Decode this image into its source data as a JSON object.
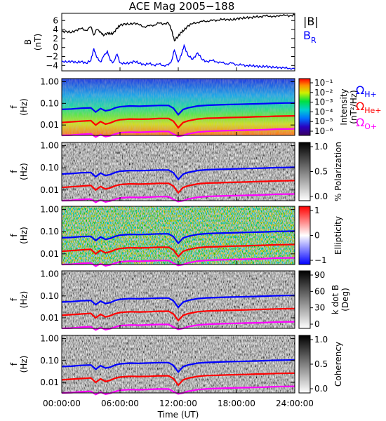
{
  "chart_data": [
    {
      "type": "line",
      "title": "ACE Mag 2005−188",
      "ylabel": "B",
      "yunit": "(nT)",
      "yticks": [
        "6",
        "4",
        "2",
        "0",
        "−2",
        "−4"
      ],
      "ylim": [
        -5.2,
        7.6
      ],
      "x_hours": [
        0,
        0.5,
        1,
        1.5,
        2,
        2.5,
        3,
        3.3,
        3.6,
        4,
        4.3,
        4.7,
        5,
        5.3,
        5.7,
        6,
        6.5,
        7,
        7.5,
        8,
        8.5,
        9,
        9.5,
        10,
        10.5,
        11,
        11.3,
        11.6,
        12,
        12.3,
        12.6,
        13,
        13.5,
        14,
        14.5,
        15,
        15.5,
        16,
        16.5,
        17,
        17.5,
        18,
        18.5,
        19,
        19.5,
        20,
        20.5,
        21,
        21.5,
        22,
        22.5,
        23,
        23.5,
        24
      ],
      "series": [
        {
          "name": "|B|",
          "color": "#000000",
          "values": [
            3.5,
            3.6,
            3.3,
            3.9,
            4.2,
            3.8,
            4.6,
            2.8,
            4.0,
            3.5,
            2.6,
            3.3,
            3.0,
            3.2,
            4.3,
            4.9,
            5.3,
            5.1,
            5.5,
            5.0,
            4.6,
            4.8,
            5.0,
            5.4,
            5.3,
            5.4,
            4.0,
            1.5,
            2.5,
            3.4,
            3.8,
            4.9,
            5.3,
            5.6,
            5.8,
            5.9,
            6.0,
            6.1,
            6.2,
            6.3,
            6.1,
            6.4,
            6.5,
            6.6,
            6.7,
            6.8,
            6.9,
            7.0,
            7.0,
            6.8,
            7.2,
            7.1,
            7.1,
            7.2
          ]
        },
        {
          "name": "B",
          "subscript": "R",
          "color": "#0000ff",
          "values": [
            -3.0,
            -3.3,
            -3.0,
            -3.4,
            -3.1,
            -3.5,
            -2.9,
            -0.2,
            -2.2,
            -3.2,
            -2.0,
            -0.8,
            -2.9,
            -3.3,
            -1.5,
            -3.4,
            -3.6,
            -3.4,
            -3.1,
            -3.5,
            -3.8,
            -3.6,
            -3.9,
            -3.7,
            -4.0,
            -3.9,
            -3.0,
            -0.6,
            -3.2,
            -1.8,
            0.5,
            -1.8,
            -2.6,
            -1.2,
            -2.8,
            -3.1,
            -2.9,
            -3.2,
            -3.4,
            -3.6,
            -3.5,
            -3.8,
            -3.9,
            -4.0,
            -4.1,
            -4.1,
            -4.3,
            -4.2,
            -4.3,
            -4.5,
            -4.4,
            -4.6,
            -4.6,
            -4.8
          ]
        }
      ]
    },
    {
      "type": "heatmap",
      "ylabel": "f",
      "yunit": "(Hz)",
      "yscale": "log",
      "yticks": [
        "1.00",
        "0.10",
        "0.01"
      ],
      "colorbar_label": "Intensity",
      "colorbar_unit": "(nT²/Hz)",
      "colorbar_ticks": [
        "10⁻¹",
        "10⁻²",
        "10⁻³",
        "10⁻⁴",
        "10⁻⁵",
        "10⁻⁶"
      ],
      "overlay_legend": [
        {
          "text": "Ω",
          "sub": "H+",
          "color": "#0000ff"
        },
        {
          "text": "Ω",
          "sub": "He+",
          "color": "#ff0000"
        },
        {
          "text": "Ω",
          "sub": "O+",
          "color": "#ff00ff"
        }
      ]
    },
    {
      "type": "heatmap",
      "ylabel": "f",
      "yunit": "(Hz)",
      "yscale": "log",
      "yticks": [
        "1.00",
        "0.10",
        "0.01"
      ],
      "colorbar_label": "% Polarization",
      "colorbar_ticks": [
        "1.0",
        "0.5",
        "0.0"
      ]
    },
    {
      "type": "heatmap",
      "ylabel": "f",
      "yunit": "(Hz)",
      "yscale": "log",
      "yticks": [
        "1.00",
        "0.10",
        "0.01"
      ],
      "colorbar_label": "Ellipticity",
      "colorbar_ticks": [
        "1",
        "0",
        "−1"
      ]
    },
    {
      "type": "heatmap",
      "ylabel": "f",
      "yunit": "(Hz)",
      "yscale": "log",
      "yticks": [
        "1.00",
        "0.10",
        "0.01"
      ],
      "colorbar_label": "k dot B",
      "colorbar_unit": "(Deg)",
      "colorbar_ticks": [
        "90",
        "60",
        "30",
        "0"
      ]
    },
    {
      "type": "heatmap",
      "ylabel": "f",
      "yunit": "(Hz)",
      "yscale": "log",
      "yticks": [
        "1.00",
        "0.10",
        "0.01"
      ],
      "colorbar_label": "Coherency",
      "colorbar_ticks": [
        "1.0",
        "0.5",
        "0.0"
      ],
      "xlabel": "Time (UT)",
      "xticks": [
        "00:00:00",
        "06:00:00",
        "12:00:00",
        "18:00:00",
        "24:00:00"
      ]
    }
  ],
  "gyro_lines": {
    "x_hours": [
      0,
      1,
      2,
      3,
      3.5,
      4,
      4.5,
      5,
      5.5,
      6,
      7,
      8,
      9,
      10,
      11,
      11.5,
      12,
      12.5,
      13,
      14,
      15,
      16,
      17,
      18,
      19,
      20,
      21,
      22,
      23,
      24
    ],
    "H+": [
      0.053,
      0.055,
      0.06,
      0.062,
      0.04,
      0.058,
      0.045,
      0.05,
      0.062,
      0.07,
      0.076,
      0.074,
      0.077,
      0.08,
      0.08,
      0.06,
      0.03,
      0.052,
      0.062,
      0.076,
      0.082,
      0.085,
      0.088,
      0.09,
      0.093,
      0.095,
      0.098,
      0.102,
      0.104,
      0.106
    ],
    "He+": [
      0.013,
      0.014,
      0.015,
      0.016,
      0.01,
      0.0145,
      0.011,
      0.0125,
      0.0155,
      0.0175,
      0.019,
      0.0185,
      0.019,
      0.02,
      0.02,
      0.015,
      0.0075,
      0.013,
      0.0155,
      0.019,
      0.0205,
      0.021,
      0.022,
      0.0225,
      0.023,
      0.024,
      0.0245,
      0.0255,
      0.026,
      0.0265
    ],
    "O+": [
      0.0033,
      0.0034,
      0.0037,
      0.0039,
      0.0028,
      0.0036,
      0.0029,
      0.0032,
      0.0038,
      0.0044,
      0.0047,
      0.0046,
      0.0048,
      0.005,
      0.005,
      0.0038,
      0.003,
      0.0033,
      0.0039,
      0.0047,
      0.0051,
      0.0053,
      0.0055,
      0.0056,
      0.0058,
      0.0059,
      0.0061,
      0.0064,
      0.0065,
      0.0066
    ]
  },
  "colors": {
    "h_plus": "#0000ff",
    "he_plus": "#ff0000",
    "o_plus": "#ff00ff"
  }
}
